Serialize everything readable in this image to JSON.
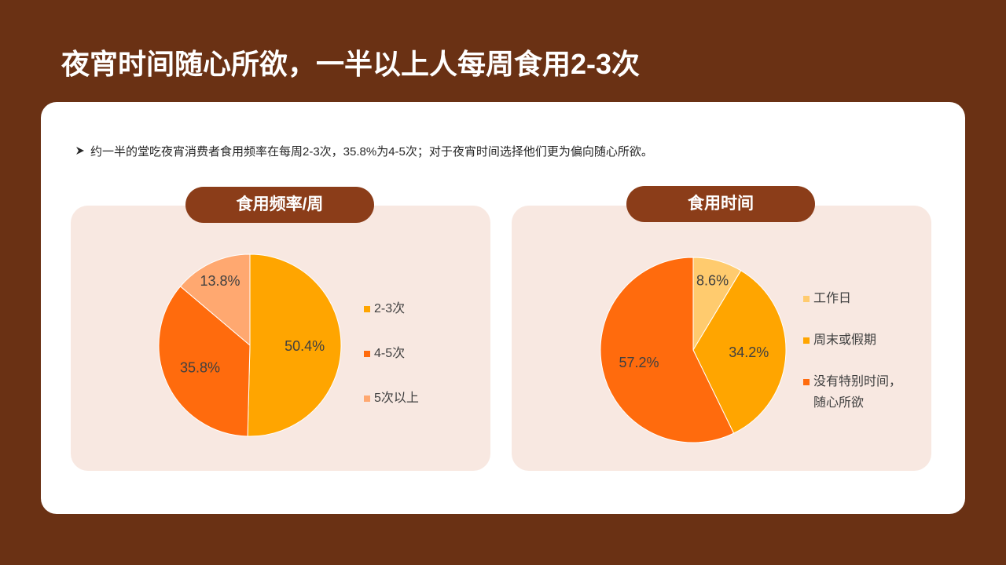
{
  "page": {
    "title": "夜宵时间随心所欲，一半以上人每周食用2-3次"
  },
  "theme": {
    "background": "#6A3114",
    "accent": "#8B3D19",
    "panel": "#F8E8E1",
    "card": "#FFFFFF"
  },
  "summary": {
    "bullet_icon": "arrowhead-bullet-icon",
    "text": "约一半的堂吃夜宵消费者食用频率在每周2-3次，35.8%为4-5次；对于夜宵时间选择他们更为偏向随心所欲。"
  },
  "chart_data": [
    {
      "type": "pie",
      "title": "食用频率/周",
      "categories": [
        "2-3次",
        "4-5次",
        "5次以上"
      ],
      "values": [
        50.4,
        35.8,
        13.8
      ],
      "colors": [
        "#FFA500",
        "#FF6B0D",
        "#FFA870"
      ],
      "data_labels": "percent",
      "legend": "right"
    },
    {
      "type": "pie",
      "title": "食用时间",
      "categories": [
        "工作日",
        "周末或假期",
        "没有特别时间，随心所欲"
      ],
      "values": [
        8.6,
        34.2,
        57.2
      ],
      "colors": [
        "#FFCB6E",
        "#FFA500",
        "#FF6B0D"
      ],
      "data_labels": "percent",
      "legend": "right"
    }
  ]
}
